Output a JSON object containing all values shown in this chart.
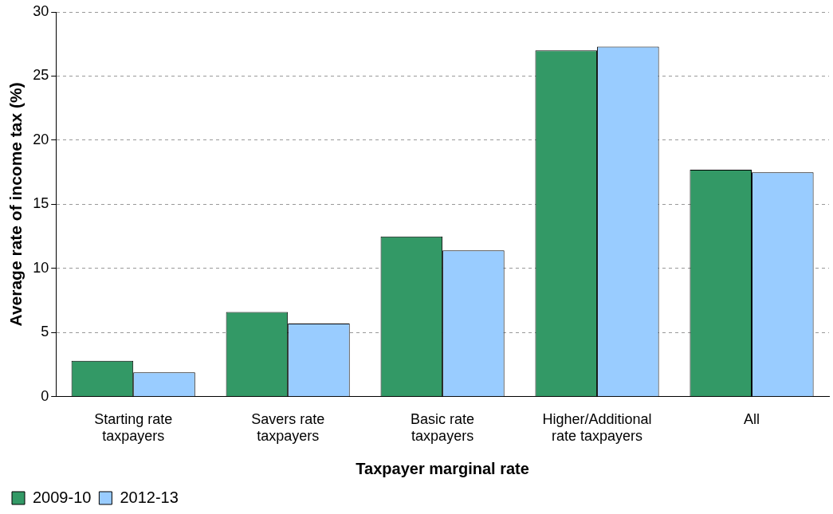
{
  "chart_data": {
    "type": "bar",
    "xlabel": "Taxpayer marginal rate",
    "ylabel": "Average rate of income tax (%)",
    "categories": [
      "Starting rate taxpayers",
      "Savers rate taxpayers",
      "Basic rate taxpayers",
      "Higher/Additional rate taxpayers",
      "All"
    ],
    "series": [
      {
        "name": "2009-10",
        "color": "#339966",
        "values": [
          2.8,
          6.6,
          12.5,
          27.0,
          17.7
        ]
      },
      {
        "name": "2012-13",
        "color": "#99ccff",
        "values": [
          1.9,
          5.7,
          11.4,
          27.3,
          17.5
        ]
      }
    ],
    "ylim": [
      0,
      30
    ],
    "yticks": [
      0,
      5,
      10,
      15,
      20,
      25,
      30
    ],
    "grid": "y",
    "legend": "bottom left"
  }
}
